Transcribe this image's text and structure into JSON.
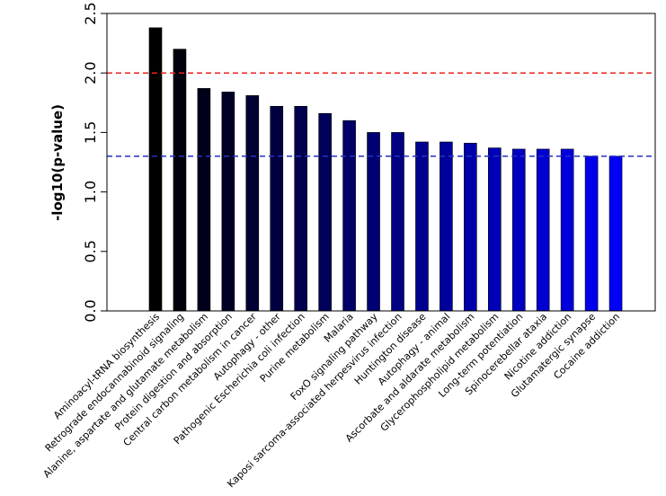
{
  "chart_data": {
    "type": "bar",
    "title": "",
    "xlabel": "",
    "ylabel": "-log10(p-value)",
    "ylim": [
      0,
      2.5
    ],
    "yticks": [
      0.0,
      0.5,
      1.0,
      1.5,
      2.0,
      2.5
    ],
    "ytick_labels": [
      "0.0",
      "0.5",
      "1.0",
      "1.5",
      "2.0",
      "2.5"
    ],
    "grid": false,
    "legend": "none",
    "categories": [
      "Aminoacyl-tRNA biosynthesis",
      "Retrograde endocannabinoid signaling",
      "Alanine, aspartate and glutamate metabolism",
      "Protein digestion and absorption",
      "Central carbon metabolism in cancer",
      "Autophagy - other",
      "Pathogenic Escherichia coli infection",
      "Purine metabolism",
      "Malaria",
      "FoxO signaling pathway",
      "Kaposi sarcoma-associated herpesvirus infection",
      "Huntington disease",
      "Autophagy - animal",
      "Ascorbate and aldarate metabolism",
      "Glycerophospholipid metabolism",
      "Long-term potentiation",
      "Spinocerebellar ataxia",
      "Nicotine addiction",
      "Glutamatergic synapse",
      "Cocaine addiction"
    ],
    "values": [
      2.38,
      2.2,
      1.87,
      1.84,
      1.81,
      1.72,
      1.72,
      1.66,
      1.6,
      1.5,
      1.5,
      1.42,
      1.42,
      1.41,
      1.37,
      1.36,
      1.36,
      1.36,
      1.3,
      1.3
    ],
    "bar_colors": [
      "#000000",
      "#00000d",
      "#00001a",
      "#000027",
      "#000034",
      "#000041",
      "#00004e",
      "#00005b",
      "#000068",
      "#000075",
      "#000082",
      "#00008f",
      "#00009c",
      "#0000a9",
      "#0000b6",
      "#0000c3",
      "#0000d0",
      "#0000dd",
      "#0000ea",
      "#0000f7"
    ],
    "reference_lines": [
      {
        "y": 2.0,
        "color": "#e8231f",
        "style": "dashed"
      },
      {
        "y": 1.3,
        "color": "#2632c0",
        "style": "dashed"
      }
    ]
  }
}
